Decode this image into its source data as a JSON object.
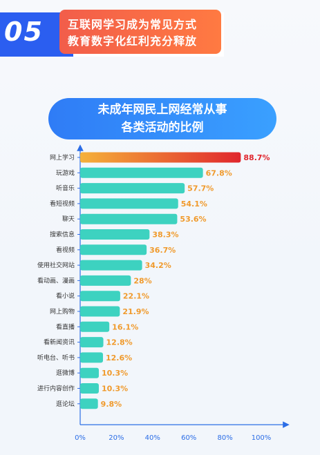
{
  "banner": {
    "number": "05",
    "line1": "互联网学习成为常见方式",
    "line2": "教育数字化红利充分释放"
  },
  "chart_data": {
    "type": "bar",
    "orientation": "horizontal",
    "title_line1": "未成年网民上网经常从事",
    "title_line2": "各类活动的比例",
    "categories": [
      "网上学习",
      "玩游戏",
      "听音乐",
      "看短视频",
      "聊天",
      "搜索信息",
      "看视频",
      "使用社交网站",
      "看动画、漫画",
      "看小说",
      "网上购物",
      "看直播",
      "看新闻资讯",
      "听电台、听书",
      "逛微博",
      "进行内容创作",
      "逛论坛"
    ],
    "values": [
      88.7,
      67.8,
      57.7,
      54.1,
      53.6,
      38.3,
      36.7,
      34.2,
      28,
      22.1,
      21.9,
      16.1,
      12.8,
      12.6,
      10.3,
      10.3,
      9.8
    ],
    "value_labels": [
      "88.7%",
      "67.8%",
      "57.7%",
      "54.1%",
      "53.6%",
      "38.3%",
      "36.7%",
      "34.2%",
      "28%",
      "22.1%",
      "21.9%",
      "16.1%",
      "12.8%",
      "12.6%",
      "10.3%",
      "10.3%",
      "9.8%"
    ],
    "xlim": [
      0,
      100
    ],
    "x_ticks": [
      "0%",
      "20%",
      "40%",
      "60%",
      "80%",
      "100%"
    ],
    "colors": {
      "highlight_start": "#f5b13a",
      "highlight_end": "#e0262d",
      "bar": "#3dd2c0",
      "bar_dark": "#29bfae",
      "value_text": "#f09a2c",
      "highlight_value_text": "#e0262d",
      "highlight_label": "#f09a2c",
      "axis": "#2b6de6"
    }
  }
}
